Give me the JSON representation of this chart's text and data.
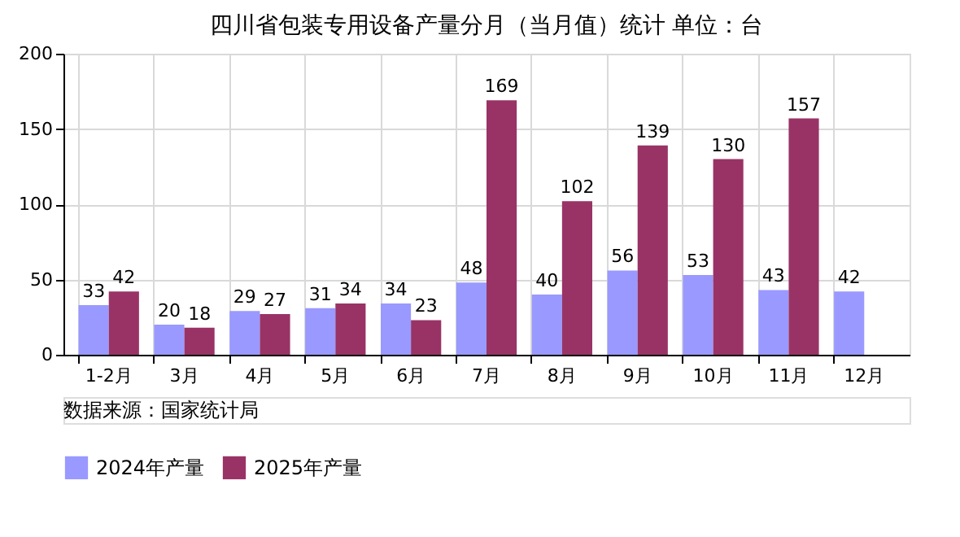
{
  "chart_data": {
    "type": "bar",
    "title": "四川省包装专用设备产量分月（当月值）统计  单位：台",
    "categories": [
      "1-2月",
      "3月",
      "4月",
      "5月",
      "6月",
      "7月",
      "8月",
      "9月",
      "10月",
      "11月",
      "12月"
    ],
    "series": [
      {
        "name": "2024年产量",
        "color": "#9999ff",
        "values": [
          33,
          20,
          29,
          31,
          34,
          48,
          40,
          56,
          53,
          43,
          42
        ]
      },
      {
        "name": "2025年产量",
        "color": "#993366",
        "values": [
          42,
          18,
          27,
          34,
          23,
          169,
          102,
          139,
          130,
          157,
          null
        ]
      }
    ],
    "ylim": [
      0,
      200
    ],
    "yticks": [
      0,
      50,
      100,
      150,
      200
    ],
    "grid": true,
    "legend": "bottom",
    "data_labels": true,
    "annotations": [
      "数据来源：国家统计局"
    ]
  }
}
